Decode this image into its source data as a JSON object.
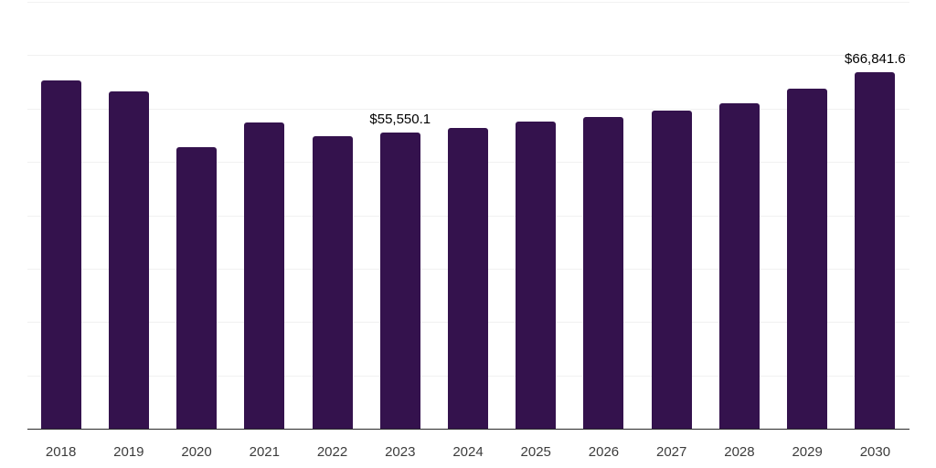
{
  "chart_data": {
    "type": "bar",
    "title": "",
    "xlabel": "",
    "ylabel": "",
    "categories": [
      "2018",
      "2019",
      "2020",
      "2021",
      "2022",
      "2023",
      "2024",
      "2025",
      "2026",
      "2027",
      "2028",
      "2029",
      "2030"
    ],
    "values": [
      65300,
      63150,
      52700,
      57450,
      54900,
      55550.1,
      56300,
      57500,
      58400,
      59650,
      61000,
      63700,
      66841.6
    ],
    "data_labels": {
      "5": "$55,550.1",
      "12": "$66,841.6"
    },
    "ylim": [
      0,
      80000
    ],
    "gridline_interval": 10000,
    "grid": true,
    "legend": false,
    "colors": {
      "bar": "#34124D",
      "gridline": "#f1f1f1",
      "axis_line": "#2a2a2a",
      "tick_label": "#3c3c3c",
      "data_label": "#000000",
      "background": "#ffffff"
    }
  }
}
